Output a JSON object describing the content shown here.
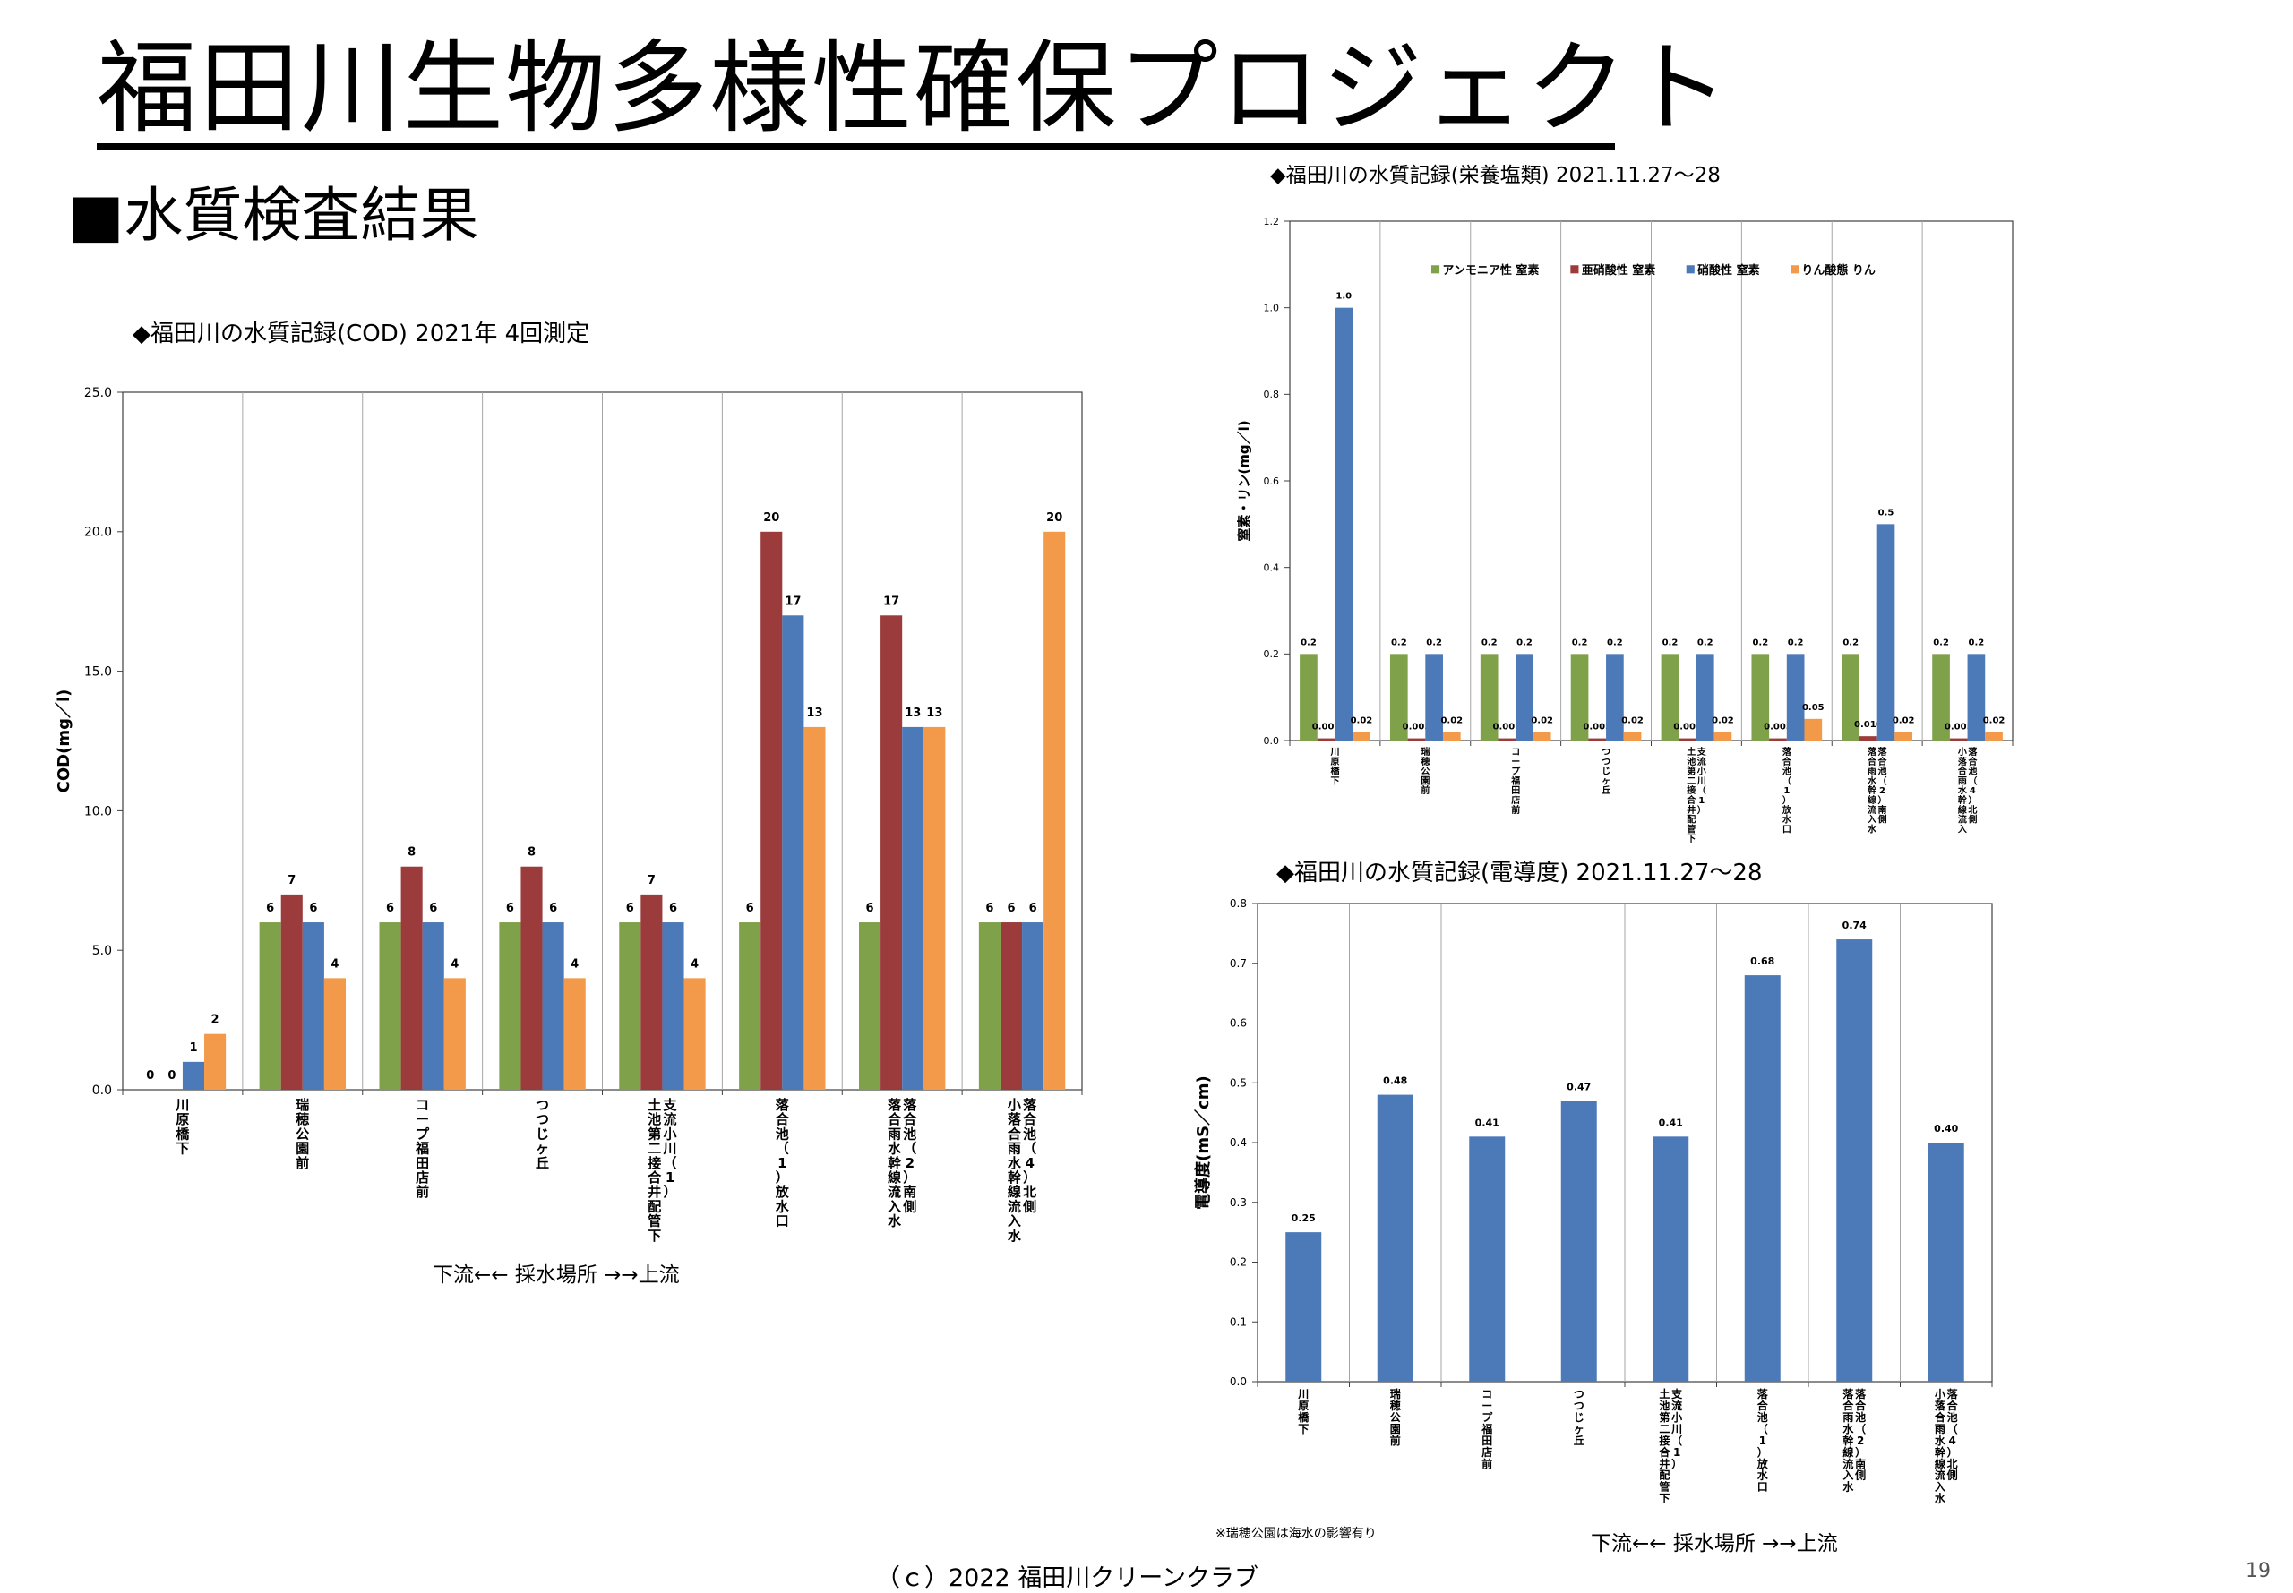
{
  "page": {
    "title": "福田川生物多様性確保プロジェクト",
    "section": "■水質検査結果",
    "footer": "（ｃ）2022 福田川クリーンクラブ",
    "page_number": "19"
  },
  "colors": {
    "green": "#7fa14a",
    "red": "#9b3b3b",
    "blue": "#4c79b8",
    "orange": "#f39a4a",
    "grid": "#a6a6a6",
    "axis": "#404040"
  },
  "chart_data": [
    {
      "id": "cod",
      "type": "bar",
      "title": "◆福田川の水質記録(COD)  2021年  4回測定",
      "xlabel": "下流←←  採水場所  →→上流",
      "ylabel": "COD(mg／l)",
      "ylim": [
        0,
        25
      ],
      "yticks": [
        "0.0",
        "5.0",
        "10.0",
        "15.0",
        "20.0",
        "25.0"
      ],
      "grid": true,
      "categories": [
        "川原橋下",
        "瑞穂公園前",
        "コープ福田店前",
        "つつじヶ丘",
        "土池第二接合井配管下|支流小川（1）",
        "落合池（1）放水口",
        "落合雨水幹線流入水|落合池（2）南側",
        "小落合雨水幹線流入水|落合池（4）北側"
      ],
      "series": [
        {
          "values": [
            0,
            6,
            6,
            6,
            6,
            6,
            6,
            6
          ],
          "labels": [
            "0",
            "6",
            "6",
            "6",
            "6",
            "6",
            "6",
            "6"
          ]
        },
        {
          "values": [
            0,
            7,
            8,
            8,
            7,
            20,
            17,
            6
          ],
          "labels": [
            "0",
            "7",
            "8",
            "8",
            "7",
            "20",
            "17",
            "6"
          ]
        },
        {
          "values": [
            1,
            6,
            6,
            6,
            6,
            17,
            13,
            6
          ],
          "labels": [
            "1",
            "6",
            "6",
            "6",
            "6",
            "17",
            "13",
            "6"
          ]
        },
        {
          "values": [
            2,
            4,
            4,
            4,
            4,
            13,
            13,
            20
          ],
          "labels": [
            "2",
            "4",
            "4",
            "4",
            "4",
            "13",
            "13",
            "20"
          ]
        }
      ]
    },
    {
      "id": "nutrients",
      "type": "bar",
      "title": "◆福田川の水質記録(栄養塩類)  2021.11.27～28",
      "ylabel": "窒素・リン(mg／l)",
      "ylim": [
        0,
        1.2
      ],
      "yticks": [
        "0.0",
        "0.2",
        "0.4",
        "0.6",
        "0.8",
        "1.0",
        "1.2"
      ],
      "grid": true,
      "legend_position": "top",
      "categories": [
        "川原橋下",
        "瑞穂公園前",
        "コープ福田店前",
        "つつじヶ丘",
        "土池第二接合井配管下|支流小川（1）",
        "落合池（1）放水口",
        "落合雨水幹線流入水|落合池（2）南側",
        "小落合雨水幹線流入|落合池（4）北側"
      ],
      "series": [
        {
          "name": "アンモニア性 窒素",
          "values": [
            0.2,
            0.2,
            0.2,
            0.2,
            0.2,
            0.2,
            0.2,
            0.2
          ],
          "labels": [
            "0.2",
            "0.2",
            "0.2",
            "0.2",
            "0.2",
            "0.2",
            "0.2",
            "0.2"
          ]
        },
        {
          "name": "亜硝酸性 窒素",
          "values": [
            0.005,
            0.005,
            0.005,
            0.005,
            0.005,
            0.005,
            0.01,
            0.005
          ],
          "labels": [
            "0.005",
            "0.005",
            "0.005",
            "0.005",
            "0.005",
            "0.005",
            "0.010",
            "0.005"
          ]
        },
        {
          "name": "硝酸性 窒素",
          "values": [
            1.0,
            0.2,
            0.2,
            0.2,
            0.2,
            0.2,
            0.5,
            0.2
          ],
          "labels": [
            "1.0",
            "0.2",
            "0.2",
            "0.2",
            "0.2",
            "0.2",
            "0.5",
            "0.2"
          ]
        },
        {
          "name": "りん酸態 りん",
          "values": [
            0.02,
            0.02,
            0.02,
            0.02,
            0.02,
            0.05,
            0.02,
            0.02
          ],
          "labels": [
            "0.02",
            "0.02",
            "0.02",
            "0.02",
            "0.02",
            "0.05",
            "0.02",
            "0.02"
          ]
        }
      ]
    },
    {
      "id": "conductivity",
      "type": "bar",
      "title": "◆福田川の水質記録(電導度)  2021.11.27～28",
      "xlabel": "下流←←  採水場所  →→上流",
      "ylabel": "電導度(mS／cm)",
      "note": "※瑞穂公園は海水の影響有り",
      "ylim": [
        0,
        0.8
      ],
      "yticks": [
        "0.0",
        "0.1",
        "0.2",
        "0.3",
        "0.4",
        "0.5",
        "0.6",
        "0.7",
        "0.8"
      ],
      "grid": true,
      "categories": [
        "川原橋下",
        "瑞穂公園前",
        "コープ福田店前",
        "つつじヶ丘",
        "土池第二接合井配管下|支流小川（1）",
        "落合池（1）放水口",
        "落合雨水幹線流入水|落合池（2）南側",
        "小落合雨水幹線流入水|落合池（4）北側"
      ],
      "series": [
        {
          "values": [
            0.25,
            0.48,
            0.41,
            0.47,
            0.41,
            0.68,
            0.74,
            0.4
          ],
          "labels": [
            "0.25",
            "0.48",
            "0.41",
            "0.47",
            "0.41",
            "0.68",
            "0.74",
            "0.40"
          ]
        }
      ]
    }
  ]
}
